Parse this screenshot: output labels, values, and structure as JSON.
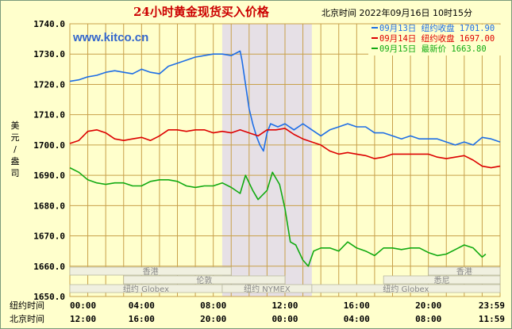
{
  "header": {
    "title": "24小时黄金现货买入价格",
    "timestamp": "北京时间  2022年09月16日 10时15分",
    "watermark": "www.kitco.cn"
  },
  "y_axis_label": [
    "美",
    "元",
    "/",
    "盎",
    "司"
  ],
  "row_labels": {
    "ny_time": "纽约时间",
    "bj_time": "北京时间"
  },
  "markets": [
    {
      "name": "香港",
      "lane": 0,
      "span": [
        0,
        9
      ]
    },
    {
      "name": "香港",
      "lane": 0,
      "span": [
        20,
        24
      ]
    },
    {
      "name": "伦敦",
      "lane": 1,
      "span": [
        3,
        12
      ]
    },
    {
      "name": "悉尼",
      "lane": 1,
      "span": [
        17.5,
        24
      ]
    },
    {
      "name": "纽约 Globex",
      "lane": 2,
      "span": [
        0,
        8.5
      ]
    },
    {
      "name": "纽约 NYMEX",
      "lane": 2,
      "span": [
        8.5,
        13.5
      ]
    },
    {
      "name": "纽约 Globex",
      "lane": 2,
      "span": [
        13.5,
        24
      ]
    }
  ],
  "colors": {
    "plot_bg": "#ffffcc",
    "grid": "#c8a04a",
    "axis_text": "#000000",
    "title": "#cc0000",
    "nymex_shade": "#e6e0e6",
    "bar_bg": "#f0f0e0",
    "watermark": "#3366cc"
  },
  "chart_data": {
    "type": "line",
    "x_unit": "hours (New York time)",
    "xlim": [
      0,
      24
    ],
    "ylim": [
      1650,
      1740
    ],
    "y_ticks": [
      "1740.0",
      "1730.0",
      "1720.0",
      "1710.0",
      "1700.0",
      "1690.0",
      "1680.0",
      "1670.0",
      "1660.0",
      "1650.0"
    ],
    "y_tick_values": [
      1740,
      1730,
      1720,
      1710,
      1700,
      1690,
      1680,
      1670,
      1660,
      1650
    ],
    "x_ticks_ny": [
      "00:00",
      "04:00",
      "08:00",
      "12:00",
      "16:00",
      "20:00",
      "23:59"
    ],
    "x_ticks_bj": [
      "12:00",
      "16:00",
      "20:00",
      "00:00",
      "04:00",
      "08:00",
      "11:59"
    ],
    "x_tick_values": [
      0,
      4,
      8,
      12,
      16,
      20,
      24
    ],
    "shaded_region": [
      8.5,
      13.5
    ],
    "series": [
      {
        "name": "09月13日 纽约收盘 1701.90",
        "color": "#1e6ee6",
        "points": [
          [
            0,
            1721
          ],
          [
            0.5,
            1721.5
          ],
          [
            1,
            1722.5
          ],
          [
            1.5,
            1723
          ],
          [
            2,
            1724
          ],
          [
            2.5,
            1724.5
          ],
          [
            3,
            1724
          ],
          [
            3.5,
            1723.5
          ],
          [
            4,
            1725
          ],
          [
            4.5,
            1724
          ],
          [
            5,
            1723.5
          ],
          [
            5.5,
            1726
          ],
          [
            6,
            1727
          ],
          [
            6.5,
            1728
          ],
          [
            7,
            1729
          ],
          [
            7.5,
            1729.5
          ],
          [
            8,
            1730
          ],
          [
            8.5,
            1730
          ],
          [
            9,
            1729.5
          ],
          [
            9.5,
            1731
          ],
          [
            9.6,
            1728
          ],
          [
            9.8,
            1720
          ],
          [
            10,
            1712
          ],
          [
            10.2,
            1707
          ],
          [
            10.4,
            1703
          ],
          [
            10.6,
            1700
          ],
          [
            10.8,
            1698
          ],
          [
            11,
            1704
          ],
          [
            11.2,
            1707
          ],
          [
            11.6,
            1706
          ],
          [
            12,
            1707
          ],
          [
            12.5,
            1705
          ],
          [
            13,
            1707
          ],
          [
            13.5,
            1705
          ],
          [
            14,
            1703
          ],
          [
            14.5,
            1705
          ],
          [
            15,
            1706
          ],
          [
            15.5,
            1707
          ],
          [
            16,
            1706
          ],
          [
            16.5,
            1706
          ],
          [
            17,
            1704
          ],
          [
            17.5,
            1704
          ],
          [
            18,
            1703
          ],
          [
            18.5,
            1702
          ],
          [
            19,
            1703
          ],
          [
            19.5,
            1702
          ],
          [
            20,
            1702
          ],
          [
            20.5,
            1702
          ],
          [
            21,
            1701
          ],
          [
            21.5,
            1700
          ],
          [
            22,
            1701
          ],
          [
            22.5,
            1700
          ],
          [
            23,
            1702.5
          ],
          [
            23.5,
            1702
          ],
          [
            24,
            1701
          ]
        ]
      },
      {
        "name": "09月14日 纽约收盘 1697.00",
        "color": "#dd0000",
        "points": [
          [
            0,
            1700.5
          ],
          [
            0.5,
            1701.5
          ],
          [
            1,
            1704.5
          ],
          [
            1.5,
            1705
          ],
          [
            2,
            1704
          ],
          [
            2.5,
            1702
          ],
          [
            3,
            1701.5
          ],
          [
            3.5,
            1702
          ],
          [
            4,
            1702.5
          ],
          [
            4.5,
            1701.5
          ],
          [
            5,
            1703
          ],
          [
            5.5,
            1705
          ],
          [
            6,
            1705
          ],
          [
            6.5,
            1704.5
          ],
          [
            7,
            1705
          ],
          [
            7.5,
            1705
          ],
          [
            8,
            1704
          ],
          [
            8.5,
            1704.5
          ],
          [
            9,
            1704
          ],
          [
            9.5,
            1705
          ],
          [
            10,
            1704
          ],
          [
            10.5,
            1703
          ],
          [
            11,
            1705
          ],
          [
            11.5,
            1705
          ],
          [
            12,
            1705.5
          ],
          [
            12.5,
            1703.5
          ],
          [
            13,
            1702
          ],
          [
            13.5,
            1701
          ],
          [
            14,
            1700
          ],
          [
            14.5,
            1698
          ],
          [
            15,
            1697
          ],
          [
            15.5,
            1697.5
          ],
          [
            16,
            1697
          ],
          [
            16.5,
            1696.5
          ],
          [
            17,
            1695.5
          ],
          [
            17.5,
            1696
          ],
          [
            18,
            1697
          ],
          [
            18.5,
            1697
          ],
          [
            19,
            1697
          ],
          [
            19.5,
            1697
          ],
          [
            20,
            1697
          ],
          [
            20.5,
            1696
          ],
          [
            21,
            1695.5
          ],
          [
            21.5,
            1696
          ],
          [
            22,
            1696.5
          ],
          [
            22.5,
            1695
          ],
          [
            23,
            1693
          ],
          [
            23.5,
            1692.5
          ],
          [
            24,
            1693
          ]
        ]
      },
      {
        "name": "09月15日 最新价 1663.80",
        "color": "#11aa11",
        "points": [
          [
            0,
            1692.5
          ],
          [
            0.5,
            1691
          ],
          [
            1,
            1688.5
          ],
          [
            1.5,
            1687.5
          ],
          [
            2,
            1687
          ],
          [
            2.5,
            1687.5
          ],
          [
            3,
            1687.5
          ],
          [
            3.5,
            1686.5
          ],
          [
            4,
            1686.5
          ],
          [
            4.5,
            1688
          ],
          [
            5,
            1688.5
          ],
          [
            5.5,
            1688.5
          ],
          [
            6,
            1688
          ],
          [
            6.5,
            1686.5
          ],
          [
            7,
            1686
          ],
          [
            7.5,
            1686.5
          ],
          [
            8,
            1686.5
          ],
          [
            8.5,
            1687.5
          ],
          [
            9,
            1686
          ],
          [
            9.5,
            1684
          ],
          [
            9.8,
            1690
          ],
          [
            10.2,
            1685
          ],
          [
            10.5,
            1682
          ],
          [
            11,
            1685
          ],
          [
            11.3,
            1691
          ],
          [
            11.7,
            1687
          ],
          [
            12,
            1679
          ],
          [
            12.3,
            1668
          ],
          [
            12.6,
            1667
          ],
          [
            13,
            1662
          ],
          [
            13.3,
            1660
          ],
          [
            13.6,
            1665
          ],
          [
            14,
            1666
          ],
          [
            14.5,
            1666
          ],
          [
            15,
            1665
          ],
          [
            15.5,
            1668
          ],
          [
            16,
            1666
          ],
          [
            16.5,
            1665
          ],
          [
            17,
            1663.5
          ],
          [
            17.5,
            1666
          ],
          [
            18,
            1666
          ],
          [
            18.5,
            1665.5
          ],
          [
            19,
            1666
          ],
          [
            19.5,
            1666
          ],
          [
            20,
            1664.5
          ],
          [
            20.5,
            1663.5
          ],
          [
            21,
            1664
          ],
          [
            21.5,
            1665.5
          ],
          [
            22,
            1667
          ],
          [
            22.5,
            1666
          ],
          [
            23,
            1663
          ],
          [
            23.2,
            1664
          ]
        ]
      }
    ]
  }
}
